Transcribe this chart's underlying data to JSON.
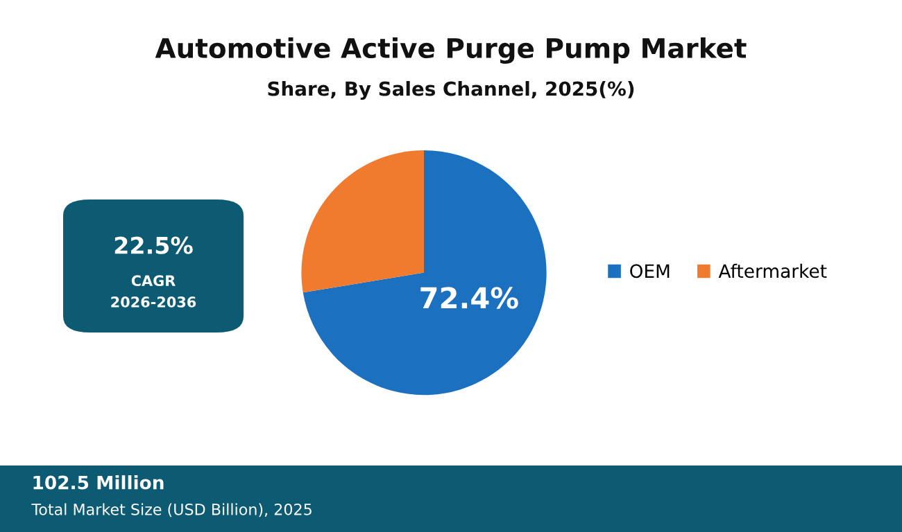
{
  "chart_data": {
    "type": "pie",
    "title": "Automotive Active Purge Pump Market",
    "subtitle": "Share, By Sales Channel, 2025(%)",
    "categories": [
      "OEM",
      "Aftermarket"
    ],
    "values": [
      72.4,
      27.6
    ],
    "colors": [
      "#1b70bf",
      "#f07a2e"
    ],
    "value_labels": [
      "72.4%",
      null
    ],
    "legend": "right",
    "annotations": [
      "22.5%",
      "CAGR",
      "2026-2036",
      "102.5 Million",
      "Total Market Size (USD Billion), 2025"
    ]
  }
}
